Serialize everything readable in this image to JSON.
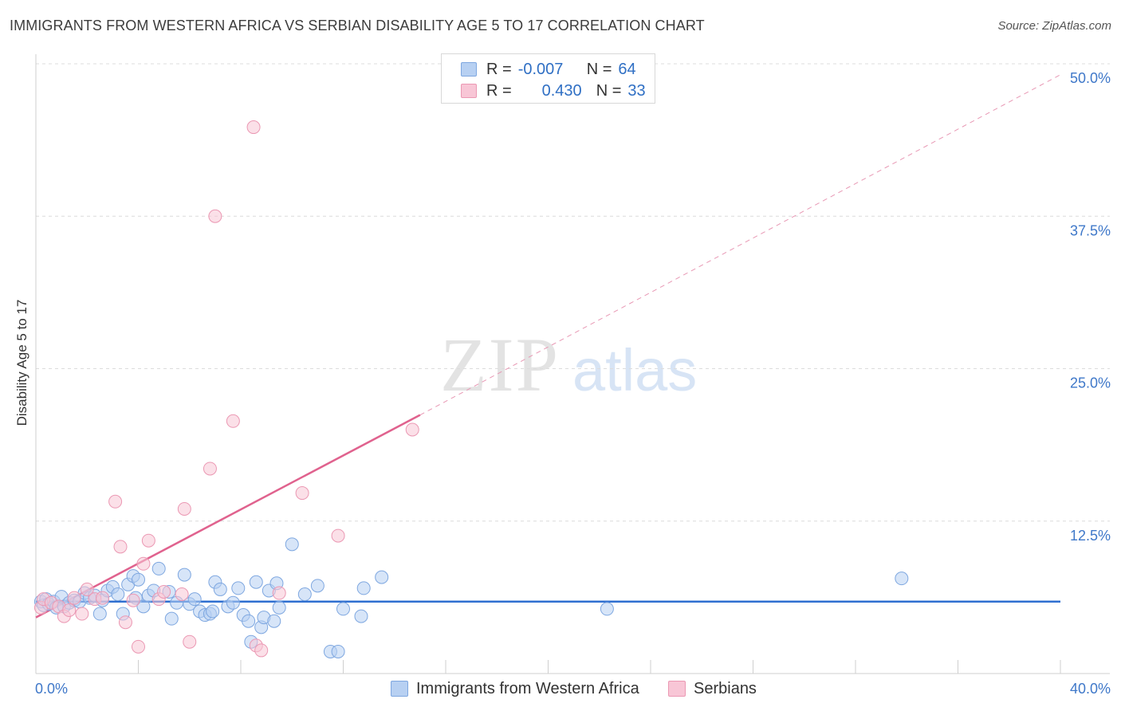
{
  "header": {
    "title": "IMMIGRANTS FROM WESTERN AFRICA VS SERBIAN DISABILITY AGE 5 TO 17 CORRELATION CHART",
    "source": "Source: ZipAtlas.com"
  },
  "watermark": {
    "zip": "ZIP",
    "atlas": "atlas"
  },
  "legend_top": {
    "rows": [
      {
        "r_label": "R =",
        "r_value": "-0.007",
        "n_label": "N =",
        "n_value": "64",
        "color": "#7ea7e0"
      },
      {
        "r_label": "R =",
        "r_value": "0.430",
        "n_label": "N =",
        "n_value": "33",
        "color": "#eb98b3"
      }
    ]
  },
  "legend_bottom": {
    "items": [
      {
        "label": "Immigrants from Western Africa",
        "color": "#7ea7e0"
      },
      {
        "label": "Serbians",
        "color": "#eb98b3"
      }
    ]
  },
  "chart_data": {
    "type": "scatter",
    "title": "IMMIGRANTS FROM WESTERN AFRICA VS SERBIAN DISABILITY AGE 5 TO 17 CORRELATION CHART",
    "xlabel": "",
    "ylabel": "Disability Age 5 to 17",
    "xlim": [
      0,
      40
    ],
    "ylim": [
      0,
      50
    ],
    "x_tick_labels": [
      {
        "value": 0,
        "label": "0.0%"
      },
      {
        "value": 40,
        "label": "40.0%"
      }
    ],
    "y_tick_labels": [
      {
        "value": 12.5,
        "label": "12.5%"
      },
      {
        "value": 25,
        "label": "25.0%"
      },
      {
        "value": 37.5,
        "label": "37.5%"
      },
      {
        "value": 50,
        "label": "50.0%"
      }
    ],
    "grid": "horizontal dashed",
    "series": [
      {
        "name": "Immigrants from Western Africa",
        "color": "#7ea7e0",
        "trend": {
          "x": [
            0,
            40
          ],
          "y": [
            5.9,
            5.9
          ],
          "style": "solid"
        },
        "points": [
          [
            0.2,
            5.9
          ],
          [
            0.3,
            5.6
          ],
          [
            0.4,
            6.1
          ],
          [
            0.5,
            5.7
          ],
          [
            0.7,
            5.9
          ],
          [
            0.8,
            5.4
          ],
          [
            1.0,
            6.3
          ],
          [
            1.1,
            5.5
          ],
          [
            1.3,
            5.8
          ],
          [
            1.5,
            6.0
          ],
          [
            1.7,
            5.9
          ],
          [
            1.9,
            6.6
          ],
          [
            2.1,
            6.2
          ],
          [
            2.3,
            6.4
          ],
          [
            2.5,
            4.9
          ],
          [
            2.6,
            6.0
          ],
          [
            2.8,
            6.8
          ],
          [
            3.0,
            7.1
          ],
          [
            3.2,
            6.5
          ],
          [
            3.4,
            4.9
          ],
          [
            3.6,
            7.3
          ],
          [
            3.8,
            8.0
          ],
          [
            3.9,
            6.2
          ],
          [
            4.0,
            7.7
          ],
          [
            4.2,
            5.5
          ],
          [
            4.4,
            6.4
          ],
          [
            4.6,
            6.8
          ],
          [
            4.8,
            8.6
          ],
          [
            5.2,
            6.7
          ],
          [
            5.3,
            4.5
          ],
          [
            5.5,
            5.8
          ],
          [
            5.8,
            8.1
          ],
          [
            6.0,
            5.7
          ],
          [
            6.2,
            6.1
          ],
          [
            6.4,
            5.1
          ],
          [
            6.6,
            4.8
          ],
          [
            6.8,
            4.9
          ],
          [
            6.9,
            5.1
          ],
          [
            7.0,
            7.5
          ],
          [
            7.2,
            6.9
          ],
          [
            7.5,
            5.5
          ],
          [
            7.7,
            5.8
          ],
          [
            7.9,
            7.0
          ],
          [
            8.1,
            4.8
          ],
          [
            8.3,
            4.3
          ],
          [
            8.4,
            2.6
          ],
          [
            8.6,
            7.5
          ],
          [
            8.8,
            3.8
          ],
          [
            8.9,
            4.6
          ],
          [
            9.1,
            6.8
          ],
          [
            9.3,
            4.3
          ],
          [
            9.4,
            7.4
          ],
          [
            9.5,
            5.4
          ],
          [
            10.0,
            10.6
          ],
          [
            10.5,
            6.5
          ],
          [
            11.0,
            7.2
          ],
          [
            11.5,
            1.8
          ],
          [
            11.8,
            1.8
          ],
          [
            12.0,
            5.3
          ],
          [
            12.7,
            4.7
          ],
          [
            12.8,
            7.0
          ],
          [
            13.5,
            7.9
          ],
          [
            22.3,
            5.3
          ],
          [
            33.8,
            7.8
          ]
        ]
      },
      {
        "name": "Serbians",
        "color": "#eb98b3",
        "trend": {
          "x": [
            0,
            15
          ],
          "y": [
            4.6,
            21.2
          ],
          "style": "solid",
          "extension_to": [
            40,
            49.1
          ]
        },
        "points": [
          [
            0.2,
            5.4
          ],
          [
            0.3,
            6.1
          ],
          [
            0.6,
            5.8
          ],
          [
            0.9,
            5.5
          ],
          [
            1.1,
            4.7
          ],
          [
            1.3,
            5.2
          ],
          [
            1.5,
            6.2
          ],
          [
            1.8,
            4.9
          ],
          [
            2.0,
            6.9
          ],
          [
            2.3,
            6.1
          ],
          [
            2.6,
            6.2
          ],
          [
            3.1,
            14.1
          ],
          [
            3.3,
            10.4
          ],
          [
            3.5,
            4.2
          ],
          [
            3.8,
            6.0
          ],
          [
            4.0,
            2.2
          ],
          [
            4.2,
            9.0
          ],
          [
            4.4,
            10.9
          ],
          [
            4.8,
            6.1
          ],
          [
            5.0,
            6.7
          ],
          [
            5.7,
            6.5
          ],
          [
            5.8,
            13.5
          ],
          [
            6.0,
            2.6
          ],
          [
            7.0,
            37.5
          ],
          [
            6.8,
            16.8
          ],
          [
            7.7,
            20.7
          ],
          [
            8.5,
            44.8
          ],
          [
            8.6,
            2.3
          ],
          [
            8.8,
            1.9
          ],
          [
            9.5,
            6.6
          ],
          [
            10.4,
            14.8
          ],
          [
            11.8,
            11.3
          ],
          [
            14.7,
            20.0
          ]
        ]
      }
    ],
    "legend_position": "top-center"
  }
}
